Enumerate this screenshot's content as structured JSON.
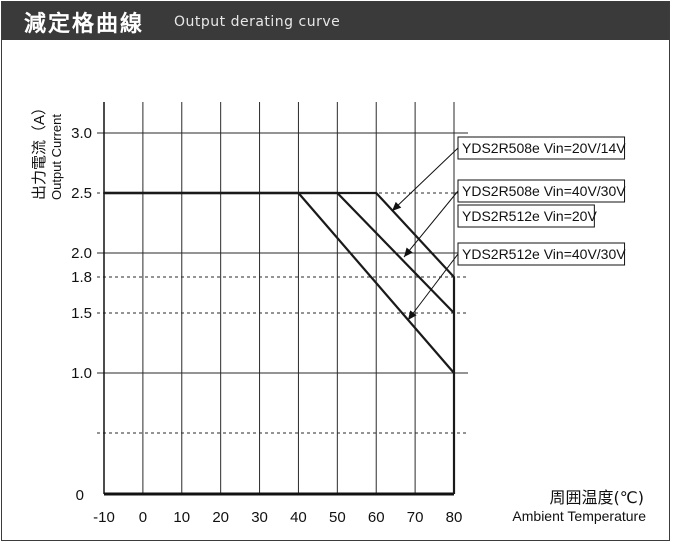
{
  "header": {
    "title_cn": "減定格曲線",
    "title_en": "Output derating curve"
  },
  "chart_data": {
    "type": "line",
    "ylabel_cn": "出力電流（A）",
    "ylabel_en": "Output Current",
    "xlabel_cn": "周囲温度(℃)",
    "xlabel_en": "Ambient Temperature",
    "xlim": [
      -10,
      80
    ],
    "x_ticks": [
      "-10",
      "0",
      "10",
      "20",
      "30",
      "40",
      "50",
      "60",
      "70",
      "80"
    ],
    "y_ticks": [
      "0",
      "1.0",
      "1.5",
      "1.8",
      "2.0",
      "2.5",
      "3.0"
    ],
    "y_tick_values": [
      0,
      1.0,
      1.5,
      1.8,
      2.0,
      2.5,
      3.0
    ],
    "dashed_levels": [
      2.5,
      1.8,
      1.5,
      0.5
    ],
    "series": [
      {
        "name": "YDS2R508e Vin=20V/14V",
        "x": [
          -10,
          60,
          80,
          80
        ],
        "y": [
          2.5,
          2.5,
          1.8,
          0
        ]
      },
      {
        "name": "YDS2R508e Vin=40V/30V",
        "x": [
          -10,
          50,
          80
        ],
        "y": [
          2.5,
          2.5,
          1.5
        ]
      },
      {
        "name": "YDS2R512e Vin=20V",
        "x": [
          -10,
          50,
          80
        ],
        "y": [
          2.5,
          2.5,
          1.5
        ]
      },
      {
        "name": "YDS2R512e Vin=40V/30V",
        "x": [
          -10,
          40,
          80
        ],
        "y": [
          2.5,
          2.5,
          1.0
        ]
      }
    ],
    "legend_entries": [
      "YDS2R508e Vin=20V/14V",
      "YDS2R508e Vin=40V/30V",
      "YDS2R512e Vin=20V",
      "YDS2R512e Vin=40V/30V"
    ],
    "colors": {
      "line": "#1a1a1a",
      "grid": "#2a2a2a",
      "header_bg": "#3a3a3a"
    }
  }
}
